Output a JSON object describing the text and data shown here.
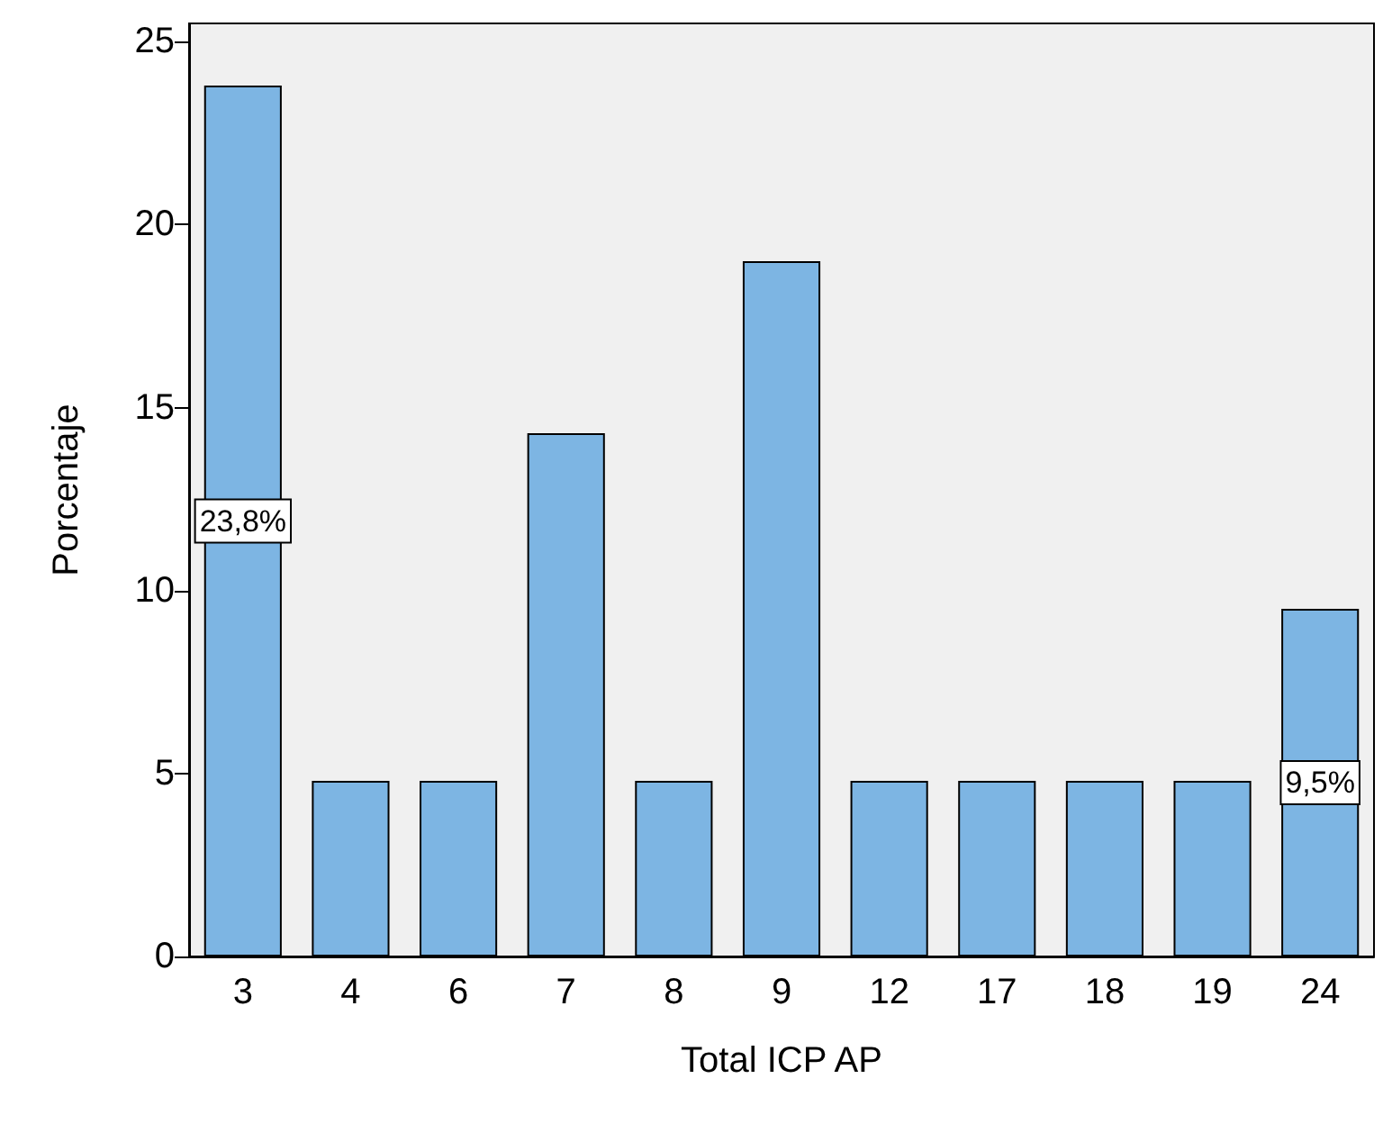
{
  "chart_data": {
    "type": "bar",
    "xlabel": "Total ICP AP",
    "ylabel": "Porcentaje",
    "categories": [
      "3",
      "4",
      "6",
      "7",
      "8",
      "9",
      "12",
      "17",
      "18",
      "19",
      "24"
    ],
    "values": [
      23.8,
      4.8,
      4.8,
      14.3,
      4.8,
      19.0,
      4.8,
      4.8,
      4.8,
      4.8,
      9.5
    ],
    "value_labels": [
      "23,8%",
      null,
      null,
      null,
      null,
      null,
      null,
      null,
      null,
      null,
      "9,5%"
    ],
    "color": "#7db5e3",
    "ylim": [
      0,
      25.5
    ],
    "yticks": [
      0,
      5,
      10,
      15,
      20,
      25
    ]
  }
}
